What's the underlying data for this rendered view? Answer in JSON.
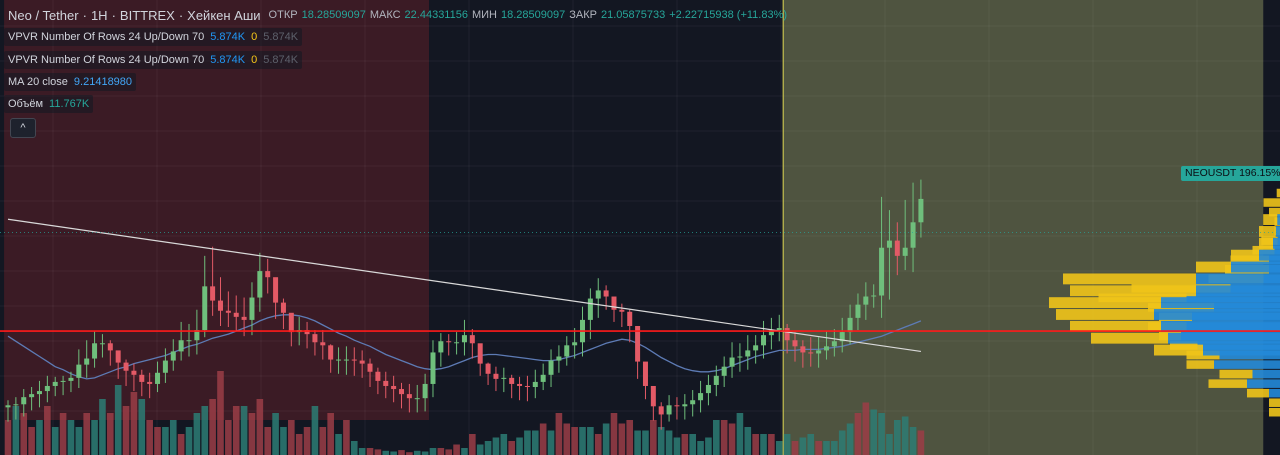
{
  "header": {
    "symbol": "Neo / Tether",
    "sep1": "·",
    "interval": "1H",
    "sep2": "·",
    "exchange": "BITTREX",
    "sep3": "·",
    "chart_style": "Хейкен Аши",
    "open_label": "ОТКР",
    "open_value": "18.28509097",
    "high_label": "МАКС",
    "high_value": "22.44331156",
    "low_label": "МИН",
    "low_value": "18.28509097",
    "close_label": "ЗАКР",
    "close_value": "21.05875733",
    "change_value": "+2.22715938 (+11.83%)"
  },
  "indicators": {
    "vpvr1": {
      "name": "VPVR Number Of Rows 24 Up/Down 70",
      "up": "5.874K",
      "down": "0",
      "total": "5.874K"
    },
    "vpvr2": {
      "name": "VPVR Number Of Rows 24 Up/Down 70",
      "up": "5.874K",
      "down": "0",
      "total": "5.874K"
    },
    "ma": {
      "name": "MA 20 close",
      "value": "9.21418980"
    },
    "volume": {
      "name": "Объём",
      "value": "11.767K"
    }
  },
  "collapse_icon": "^",
  "price_label": "NEOUSDT 196.15%",
  "colors": {
    "background": "#131722",
    "up": "#26a69a",
    "down": "#ef5350",
    "up_candle": "#6fbf7c",
    "down_candle": "#e35a66",
    "zone_left": "#3b1b25",
    "zone_right": "#4f5440",
    "ma": "#5d7bb5",
    "support_line": "#ff1a1a",
    "trend_line": "#d9d9d9",
    "vp_up": "#2389d8",
    "vp_down": "#f0c419"
  },
  "chart_data": {
    "type": "candlestick",
    "chart_style": "Heikin Ashi",
    "y_range": [
      0,
      30
    ],
    "candles": {
      "open": [
        4.0,
        4.2,
        4.3,
        5.0,
        5.3,
        5.6,
        6.1,
        6.5,
        6.6,
        6.9,
        8.2,
        8.8,
        10.3,
        10.3,
        9.6,
        8.4,
        7.6,
        7.2,
        6.5,
        6.3,
        7.4,
        8.6,
        9.5,
        10.6,
        10.6,
        11.6,
        15.9,
        14.5,
        13.5,
        13.3,
        12.9,
        12.6,
        14.8,
        17.4,
        16.8,
        14.3,
        13.3,
        11.4,
        11.6,
        11.2,
        10.4,
        10.1,
        8.7,
        8.7,
        8.7,
        8.6,
        8.3,
        7.5,
        6.6,
        6.1,
        5.8,
        5.3,
        4.9,
        4.9,
        6.3,
        9.4,
        10.5,
        10.4,
        10.4,
        11.1,
        10.3,
        8.3,
        7.3,
        6.8,
        6.9,
        6.3,
        6.1,
        6.0,
        6.5,
        7.2,
        8.6,
        9.0,
        10.1,
        10.4,
        12.6,
        14.7,
        15.5,
        14.9,
        13.6,
        13.4,
        12.0,
        8.5,
        6.1,
        4.1,
        3.3,
        4.2,
        4.1,
        4.3,
        4.7,
        5.4,
        6.2,
        7.1,
        8.0,
        8.9,
        9.0,
        9.6,
        10.1,
        11.1,
        11.6,
        11.8,
        10.6,
        10.0,
        9.4,
        9.3,
        9.6,
        10.0,
        10.5,
        11.4,
        12.8,
        14.1,
        14.9,
        15.0,
        19.7,
        20.4,
        18.9,
        19.7,
        22.2
      ],
      "close": [
        4.2,
        4.3,
        5.0,
        5.3,
        5.6,
        6.1,
        6.5,
        6.6,
        6.9,
        8.2,
        8.8,
        10.3,
        10.3,
        9.6,
        8.4,
        7.6,
        7.2,
        6.5,
        6.3,
        7.4,
        8.6,
        9.5,
        10.6,
        10.6,
        11.6,
        15.9,
        14.5,
        13.5,
        13.3,
        12.9,
        12.6,
        14.8,
        17.4,
        16.8,
        14.3,
        13.3,
        11.4,
        11.6,
        11.2,
        10.4,
        10.1,
        8.7,
        8.7,
        8.7,
        8.6,
        8.3,
        7.5,
        6.6,
        6.1,
        5.8,
        5.3,
        4.9,
        4.9,
        6.3,
        9.4,
        10.5,
        10.4,
        10.4,
        11.1,
        10.3,
        8.3,
        7.3,
        6.8,
        6.9,
        6.3,
        6.1,
        6.0,
        6.5,
        7.2,
        8.6,
        9.0,
        10.1,
        10.4,
        12.6,
        14.7,
        15.5,
        14.9,
        13.6,
        13.4,
        12.0,
        8.5,
        6.1,
        4.1,
        3.3,
        4.2,
        4.1,
        4.3,
        4.7,
        5.4,
        6.2,
        7.1,
        8.0,
        8.9,
        9.0,
        9.6,
        10.1,
        11.1,
        11.6,
        11.8,
        10.6,
        10.0,
        9.4,
        9.3,
        9.6,
        10.0,
        10.5,
        11.4,
        12.8,
        14.1,
        14.9,
        15.0,
        19.7,
        20.4,
        18.9,
        19.7,
        22.2,
        24.5
      ],
      "high": [
        4.7,
        5.0,
        5.8,
        6.0,
        6.6,
        7.1,
        7.0,
        7.1,
        7.5,
        9.7,
        10.6,
        11.5,
        11.2,
        10.6,
        9.4,
        8.7,
        8.3,
        7.7,
        7.4,
        8.5,
        9.8,
        10.7,
        12.4,
        12.2,
        13.6,
        18.9,
        19.8,
        16.8,
        15.4,
        15.0,
        14.8,
        16.3,
        19.2,
        18.6,
        15.9,
        14.7,
        12.8,
        12.9,
        12.4,
        11.6,
        11.6,
        10.2,
        9.9,
        10.0,
        9.9,
        9.6,
        8.8,
        7.9,
        7.5,
        7.1,
        6.4,
        6.3,
        6.2,
        7.3,
        10.6,
        11.3,
        11.2,
        11.4,
        12.6,
        11.7,
        9.5,
        8.4,
        8.0,
        7.9,
        7.2,
        7.0,
        7.1,
        7.7,
        8.3,
        9.7,
        10.1,
        11.0,
        11.8,
        13.9,
        15.7,
        16.7,
        16.0,
        14.7,
        14.2,
        13.6,
        9.5,
        7.1,
        5.2,
        4.5,
        5.2,
        5.0,
        5.3,
        5.7,
        6.6,
        7.2,
        8.1,
        9.0,
        10.4,
        10.3,
        11.1,
        11.1,
        12.5,
        12.8,
        13.1,
        12.2,
        11.4,
        10.6,
        10.9,
        10.9,
        11.5,
        11.7,
        12.8,
        14.1,
        15.2,
        16.3,
        16.1,
        24.7,
        23.4,
        22.2,
        24.4,
        26.1,
        26.4
      ],
      "low": [
        2.6,
        2.8,
        3.1,
        3.7,
        4.0,
        4.5,
        5.1,
        5.2,
        5.5,
        5.9,
        6.9,
        7.9,
        8.9,
        8.1,
        6.8,
        6.1,
        5.6,
        5.1,
        4.9,
        5.5,
        6.4,
        7.6,
        8.6,
        9.0,
        9.2,
        10.9,
        13.0,
        12.0,
        11.9,
        11.5,
        11.0,
        11.1,
        13.4,
        15.2,
        12.7,
        11.7,
        10.0,
        10.1,
        9.8,
        9.1,
        8.7,
        7.4,
        7.3,
        7.2,
        7.1,
        6.9,
        6.0,
        5.3,
        4.9,
        4.5,
        3.9,
        3.5,
        3.5,
        3.6,
        5.0,
        8.0,
        9.1,
        9.2,
        9.1,
        8.8,
        7.1,
        6.2,
        5.6,
        5.5,
        4.9,
        4.7,
        4.6,
        4.9,
        5.7,
        6.0,
        7.4,
        8.1,
        8.8,
        9.0,
        10.7,
        12.8,
        13.6,
        12.4,
        11.9,
        10.4,
        6.8,
        4.8,
        2.7,
        1.8,
        2.6,
        2.8,
        2.8,
        3.1,
        3.5,
        4.2,
        5.1,
        6.0,
        6.9,
        7.5,
        7.7,
        8.3,
        8.8,
        9.7,
        10.5,
        9.3,
        8.5,
        7.9,
        8.0,
        7.9,
        8.7,
        9.0,
        9.4,
        10.2,
        11.6,
        12.6,
        13.8,
        12.8,
        14.6,
        17.0,
        17.5,
        17.3,
        20.7
      ]
    },
    "volume_max": 14,
    "volume": [
      5,
      7,
      6,
      4,
      5,
      7,
      4,
      6,
      5,
      4,
      6,
      5,
      8,
      6,
      10,
      7,
      9,
      8,
      5,
      4,
      4,
      5,
      3,
      4,
      6,
      7,
      8,
      12,
      5,
      7,
      7,
      6,
      8,
      4,
      6,
      4,
      5,
      3,
      4,
      7,
      4,
      6,
      3,
      5,
      2,
      1,
      1,
      0.8,
      0.6,
      0.5,
      0.7,
      0.4,
      0.6,
      0.5,
      1,
      1,
      0.8,
      1.5,
      1,
      3,
      1.5,
      2,
      2.5,
      3,
      2,
      2.5,
      3.5,
      3.5,
      4.5,
      3.5,
      6,
      4.5,
      4,
      4,
      4,
      3,
      4.5,
      6,
      4.5,
      5,
      3.5,
      3.5,
      5,
      4,
      3.5,
      2.5,
      3,
      3,
      2,
      2.5,
      5,
      5,
      4.5,
      6,
      4,
      3,
      3,
      3,
      2,
      3,
      2,
      2.5,
      3,
      2,
      2,
      2,
      3.5,
      4.5,
      6,
      7.5,
      6.5,
      6,
      3,
      5,
      5.5,
      4,
      3.5
    ],
    "volume_up": [
      false,
      true,
      false,
      false,
      true,
      false,
      true,
      false,
      true,
      true,
      false,
      true,
      true,
      false,
      true,
      false,
      false,
      true,
      false,
      false,
      true,
      true,
      false,
      true,
      true,
      true,
      false,
      false,
      false,
      false,
      true,
      false,
      false,
      false,
      true,
      true,
      false,
      false,
      false,
      true,
      false,
      false,
      true,
      false,
      true,
      true,
      false,
      false,
      true,
      true,
      false,
      false,
      true,
      true,
      true,
      false,
      false,
      false,
      true,
      false,
      true,
      true,
      true,
      true,
      false,
      true,
      true,
      true,
      false,
      true,
      false,
      false,
      false,
      true,
      true,
      false,
      true,
      false,
      false,
      false,
      true,
      true,
      false,
      true,
      true,
      true,
      false,
      true,
      true,
      true,
      true,
      false,
      false,
      true,
      true,
      false,
      true,
      false,
      true,
      true,
      false,
      true,
      true,
      false,
      true,
      true,
      true,
      true,
      false,
      false,
      true,
      true,
      true,
      true,
      true,
      true
    ],
    "ma20": [
      11,
      10.5,
      10,
      9.5,
      9,
      8.5,
      8,
      7.7,
      7.3,
      7.0,
      6.8,
      6.9,
      7.2,
      7.5,
      7.8,
      8.0,
      8.3,
      8.5,
      8.7,
      8.9,
      9.1,
      9.4,
      9.7,
      10.0,
      10.2,
      10.5,
      10.8,
      11.0,
      11.2,
      11.5,
      11.8,
      12.1,
      12.5,
      12.8,
      13.0,
      13.1,
      13.1,
      13.0,
      12.8,
      12.5,
      12.1,
      11.7,
      11.3,
      11.0,
      10.6,
      10.3,
      10.0,
      9.6,
      9.2,
      8.9,
      8.6,
      8.3,
      8.0,
      7.8,
      7.7,
      7.8,
      8.0,
      8.3,
      8.6,
      8.9,
      9.1,
      9.2,
      9.2,
      9.1,
      9.0,
      8.9,
      8.8,
      8.7,
      8.6,
      8.6,
      8.7,
      8.9,
      9.1,
      9.4,
      9.7,
      10.0,
      10.3,
      10.5,
      10.7,
      10.6,
      10.3,
      9.9,
      9.4,
      8.9,
      8.5,
      8.1,
      7.8,
      7.6,
      7.5,
      7.5,
      7.6,
      7.8,
      8.1,
      8.4,
      8.7,
      9.0,
      9.2,
      9.4,
      9.6,
      9.6,
      9.6,
      9.7,
      9.7,
      9.7,
      9.8,
      9.9,
      10.0,
      10.2,
      10.4,
      10.6,
      10.8,
      11.0,
      11.3,
      11.6,
      11.9,
      12.2,
      12.5
    ],
    "support_level": 11.5,
    "trendline": {
      "from": [
        0,
        22.5
      ],
      "to": [
        116,
        9.5
      ]
    },
    "current_level": 21.2,
    "zones": [
      {
        "from": 0,
        "to": 54,
        "color": "#3b1b25"
      },
      {
        "from": 54,
        "to": 99,
        "color": "#131722"
      },
      {
        "from": 99,
        "to": 160,
        "color": "#4f5440"
      }
    ],
    "volume_profile_1": {
      "price_from": 3,
      "price_to": 25.5,
      "up": [
        0,
        0,
        0.1,
        0.3,
        0.25,
        0.6,
        0.55,
        0.75,
        0.9,
        0.85,
        0.8,
        0.6,
        0.85,
        0.45,
        0.15,
        0.1,
        0.1,
        0.05,
        0.02,
        0,
        0,
        0,
        0,
        0
      ],
      "down": [
        0.1,
        0.1,
        0.2,
        0.35,
        0.3,
        0.25,
        0.3,
        0.25,
        0.2,
        0.35,
        0.3,
        0.6,
        0.8,
        0.9,
        0.5,
        0.4,
        0.35,
        0.2,
        0.15,
        0.05,
        0.05,
        0.1,
        0.15,
        0.03
      ]
    },
    "volume_profile_2": {
      "price_from": 9,
      "price_to": 23,
      "up": [
        0.55,
        0.8,
        0.85,
        0.9,
        0.85,
        0.6,
        0.6,
        0.35,
        0.15,
        0.05,
        0.03,
        0.02
      ],
      "down": [
        0.35,
        0.55,
        0.65,
        0.7,
        0.8,
        0.9,
        0.95,
        0.25,
        0.2,
        0.1,
        0.12,
        0.1
      ]
    }
  }
}
